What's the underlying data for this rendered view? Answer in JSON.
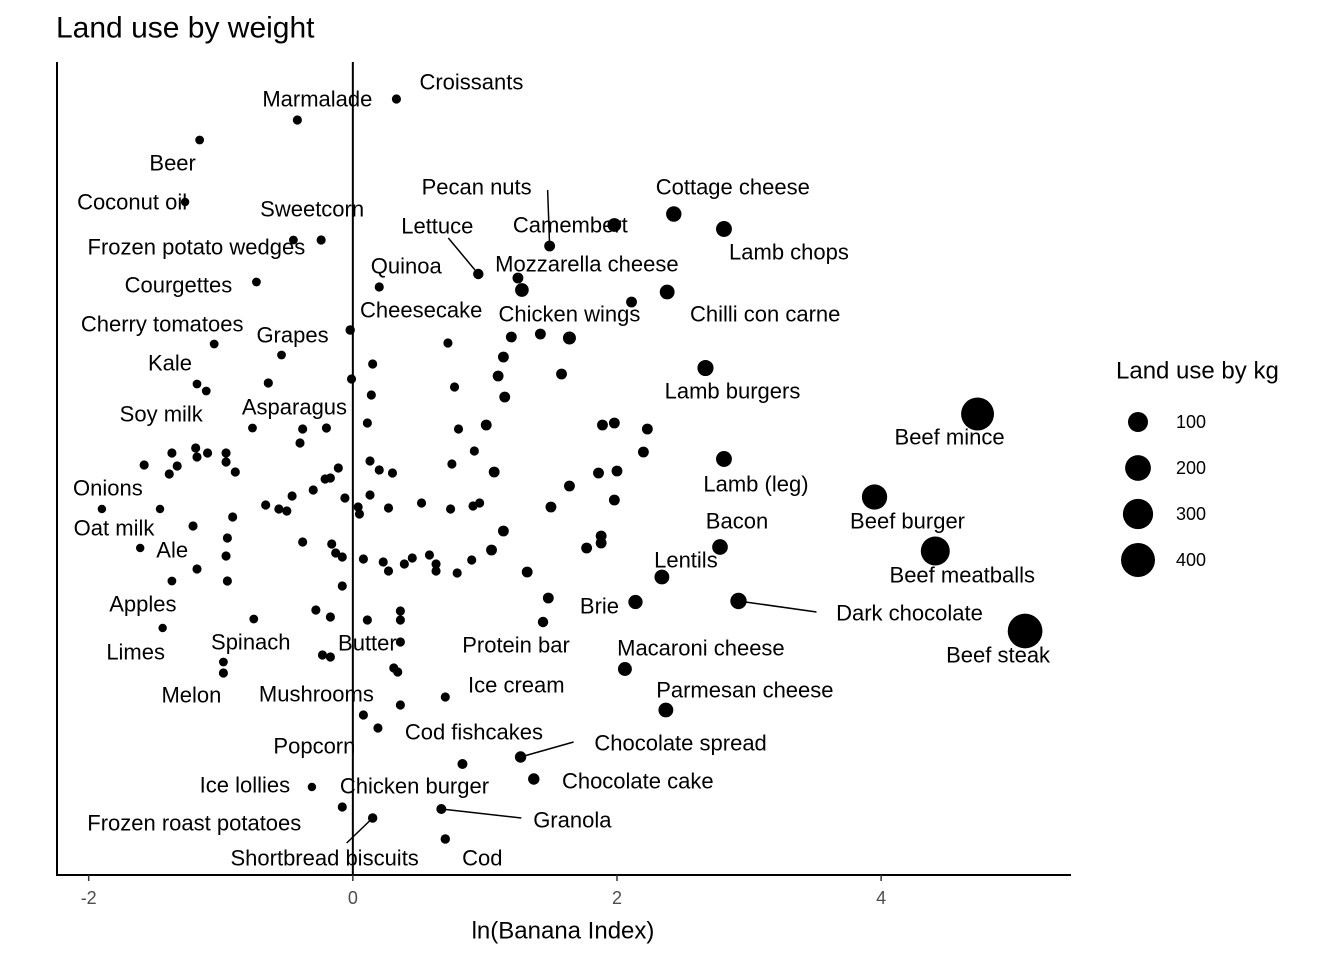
{
  "chart_data": {
    "type": "scatter",
    "title": "Land use by weight",
    "x_label": "ln(Banana Index)",
    "xlim": [
      -2.24,
      5.43
    ],
    "xticks": [
      -2,
      0,
      2,
      4
    ],
    "ylim": [
      0,
      813
    ],
    "vline": 0,
    "color": "#000000",
    "size_legend": {
      "title": "Land use by kg",
      "values": [
        100,
        200,
        300,
        400
      ]
    },
    "labels": [
      "Croissants",
      "Marmalade",
      "Beer",
      "Coconut oil",
      "Sweetcorn",
      "Frozen potato wedges",
      "Courgettes",
      "Cherry tomatoes",
      "Grapes",
      "Kale",
      "Soy milk",
      "Asparagus",
      "Onions",
      "Oat milk",
      "Ale",
      "Apples",
      "Limes",
      "Spinach",
      "Melon",
      "Butter",
      "Mushrooms",
      "Protein bar",
      "Ice cream",
      "Cod fishcakes",
      "Popcorn",
      "Chocolate spread",
      "Chocolate cake",
      "Ice lollies",
      "Chicken burger",
      "Granola",
      "Frozen roast potatoes",
      "Shortbread biscuits",
      "Cod",
      "Pecan nuts",
      "Camembert",
      "Cottage cheese",
      "Lamb chops",
      "Lettuce",
      "Quinoa",
      "Mozzarella cheese",
      "Cheesecake",
      "Chicken wings",
      "Chilli con carne",
      "Lamb burgers",
      "Beef mince",
      "Lamb (leg)",
      "Beef burger",
      "Bacon",
      "Beef meatballs",
      "Lentils",
      "Brie",
      "Dark chocolate",
      "Beef steak",
      "Macaroni cheese",
      "Parmesan cheese",
      null,
      null,
      null,
      null,
      null,
      null,
      null,
      null,
      null,
      null,
      null,
      null,
      null,
      null,
      null,
      null,
      null,
      null,
      null,
      null,
      null,
      null,
      null,
      null,
      null,
      null,
      null,
      null,
      null,
      null,
      null,
      null,
      null,
      null,
      null,
      null,
      null,
      null,
      null,
      null,
      null,
      null,
      null,
      null,
      null,
      null,
      null,
      null,
      null,
      null,
      null,
      null,
      null,
      null,
      null,
      null,
      null,
      null,
      null,
      null,
      null,
      null,
      null,
      null,
      null,
      null,
      null,
      null,
      null,
      null,
      null,
      null,
      null,
      null,
      null,
      null,
      null,
      null,
      null,
      null,
      null,
      null,
      null,
      null,
      null,
      null,
      null,
      null,
      null,
      null,
      null,
      null,
      null,
      null,
      null,
      null,
      null,
      null,
      null
    ],
    "x": [
      0.33,
      -0.42,
      -1.16,
      -1.27,
      -0.24,
      -0.45,
      -0.73,
      -1.05,
      -0.54,
      -1.18,
      -1.11,
      -0.76,
      -1.9,
      -1.46,
      -1.61,
      -1.37,
      -1.44,
      -0.75,
      -0.98,
      0.36,
      0.36,
      1.44,
      0.7,
      0.19,
      0.08,
      1.27,
      1.37,
      -0.31,
      0.83,
      0.67,
      -0.08,
      0.15,
      0.7,
      1.49,
      1.98,
      2.43,
      2.81,
      0.95,
      0.2,
      1.28,
      -0.02,
      1.64,
      2.38,
      2.67,
      4.73,
      2.81,
      3.95,
      2.78,
      4.41,
      2.34,
      2.14,
      2.92,
      5.09,
      2.06,
      2.37,
      1.25,
      2.11,
      1.2,
      1.42,
      0.72,
      1.14,
      1.1,
      1.58,
      1.15,
      0.15,
      -0.01,
      0.14,
      0.77,
      -0.64,
      0.11,
      1.01,
      0.8,
      -0.38,
      -0.2,
      -0.4,
      1.98,
      1.89,
      2.23,
      2.2,
      0.92,
      0.75,
      1.07,
      1.64,
      1.86,
      2.0,
      1.98,
      1.5,
      0.13,
      -0.11,
      0.2,
      0.3,
      -0.17,
      -1.58,
      -1.37,
      -1.33,
      -1.19,
      -1.1,
      -0.96,
      -0.96,
      -0.89,
      -1.18,
      -1.39,
      -0.46,
      -0.3,
      -0.21,
      -0.66,
      -0.56,
      -0.5,
      0.13,
      -0.06,
      0.04,
      0.05,
      0.27,
      0.52,
      0.74,
      0.91,
      0.96,
      1.14,
      1.88,
      1.77,
      1.88,
      1.05,
      -0.91,
      -1.21,
      -0.95,
      -0.38,
      -0.16,
      -0.13,
      -0.08,
      0.08,
      0.23,
      0.27,
      0.39,
      0.45,
      0.58,
      0.63,
      0.63,
      0.79,
      0.9,
      1.32,
      -0.96,
      -0.95,
      -1.18,
      -0.08,
      1.48,
      -0.28,
      -0.17,
      0.11,
      0.36,
      0.36,
      -0.23,
      -0.17,
      0.31,
      0.34,
      -0.98
    ],
    "values": [
      776,
      755,
      735,
      673,
      635,
      635,
      593,
      531,
      520,
      491,
      484,
      447,
      366,
      366,
      327,
      294,
      247,
      256,
      213,
      233,
      170,
      253,
      178,
      147,
      160,
      118,
      96,
      88,
      111,
      66,
      68,
      57,
      36,
      629,
      650,
      661,
      646,
      601,
      588,
      585,
      545,
      537,
      583,
      507,
      461,
      416,
      378,
      328,
      324,
      298,
      273,
      274,
      244,
      206,
      165,
      597,
      573,
      538,
      541,
      532,
      518,
      499,
      501,
      478,
      511,
      496,
      480,
      488,
      492,
      452,
      450,
      446,
      446,
      447,
      432,
      452,
      450,
      446,
      423,
      424,
      411,
      403,
      389,
      402,
      404,
      375,
      368,
      414,
      407,
      405,
      402,
      397,
      410,
      422,
      409,
      427,
      422,
      422,
      413,
      403,
      418,
      401,
      379,
      385,
      396,
      370,
      366,
      364,
      380,
      377,
      368,
      361,
      367,
      372,
      366,
      369,
      372,
      344,
      339,
      327,
      332,
      325,
      358,
      349,
      337,
      333,
      331,
      322,
      318,
      316,
      313,
      304,
      311,
      317,
      320,
      311,
      304,
      302,
      315,
      303,
      319,
      294,
      306,
      289,
      277,
      265,
      258,
      255,
      264,
      255,
      220,
      218,
      207,
      203,
      202
    ],
    "sizes": [
      5,
      5,
      4,
      3,
      5,
      4,
      4,
      4,
      4,
      4,
      4,
      4,
      3,
      3,
      3,
      4,
      3,
      4,
      4,
      5,
      5,
      10,
      5,
      5,
      5,
      15,
      15,
      3,
      8,
      8,
      5,
      6,
      6,
      12,
      30,
      45,
      50,
      10,
      5,
      30,
      6,
      25,
      40,
      52,
      370,
      50,
      190,
      48,
      270,
      40,
      35,
      55,
      420,
      32,
      40,
      12,
      12,
      12,
      12,
      5,
      12,
      12,
      12,
      12,
      5,
      5,
      5,
      5,
      5,
      5,
      12,
      5,
      5,
      5,
      5,
      12,
      12,
      12,
      12,
      5,
      5,
      12,
      12,
      12,
      12,
      12,
      12,
      5,
      5,
      5,
      5,
      5,
      5,
      5,
      5,
      5,
      5,
      5,
      5,
      5,
      5,
      5,
      5,
      5,
      5,
      5,
      5,
      5,
      5,
      5,
      5,
      5,
      5,
      5,
      5,
      5,
      5,
      12,
      12,
      12,
      12,
      12,
      5,
      5,
      5,
      5,
      5,
      5,
      5,
      5,
      5,
      5,
      5,
      5,
      5,
      5,
      5,
      5,
      5,
      12,
      5,
      5,
      5,
      5,
      12,
      5,
      5,
      5,
      5,
      5,
      5,
      5,
      5,
      5,
      5
    ]
  }
}
